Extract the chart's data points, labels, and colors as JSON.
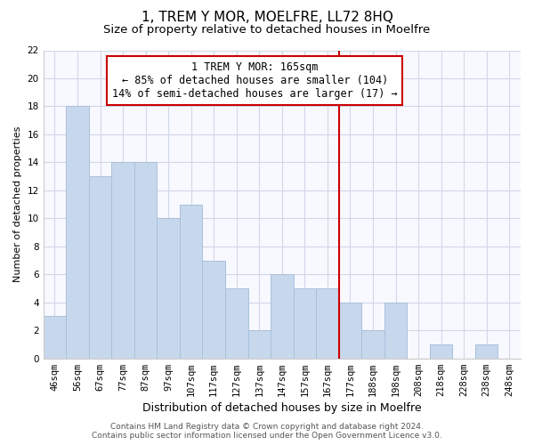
{
  "title": "1, TREM Y MOR, MOELFRE, LL72 8HQ",
  "subtitle": "Size of property relative to detached houses in Moelfre",
  "xlabel": "Distribution of detached houses by size in Moelfre",
  "ylabel": "Number of detached properties",
  "bar_labels": [
    "46sqm",
    "56sqm",
    "67sqm",
    "77sqm",
    "87sqm",
    "97sqm",
    "107sqm",
    "117sqm",
    "127sqm",
    "137sqm",
    "147sqm",
    "157sqm",
    "167sqm",
    "177sqm",
    "188sqm",
    "198sqm",
    "208sqm",
    "218sqm",
    "228sqm",
    "238sqm",
    "248sqm"
  ],
  "bar_heights": [
    3,
    18,
    13,
    14,
    14,
    10,
    11,
    7,
    5,
    2,
    6,
    5,
    5,
    4,
    2,
    4,
    0,
    1,
    0,
    1,
    0
  ],
  "bar_color": "#c8d8ec",
  "bar_edgecolor": "#a8c0dc",
  "grid_color": "#d0d8e8",
  "vline_x_index": 12,
  "vline_color": "#cc0000",
  "annotation_text": "1 TREM Y MOR: 165sqm\n← 85% of detached houses are smaller (104)\n14% of semi-detached houses are larger (17) →",
  "annotation_box_edgecolor": "#cc0000",
  "annotation_box_facecolor": "#ffffff",
  "ylim": [
    0,
    22
  ],
  "yticks": [
    0,
    2,
    4,
    6,
    8,
    10,
    12,
    14,
    16,
    18,
    20,
    22
  ],
  "footer_line1": "Contains HM Land Registry data © Crown copyright and database right 2024.",
  "footer_line2": "Contains public sector information licensed under the Open Government Licence v3.0.",
  "title_fontsize": 11,
  "subtitle_fontsize": 9.5,
  "xlabel_fontsize": 9,
  "ylabel_fontsize": 8,
  "tick_fontsize": 7.5,
  "annotation_fontsize": 8.5,
  "footer_fontsize": 6.5
}
